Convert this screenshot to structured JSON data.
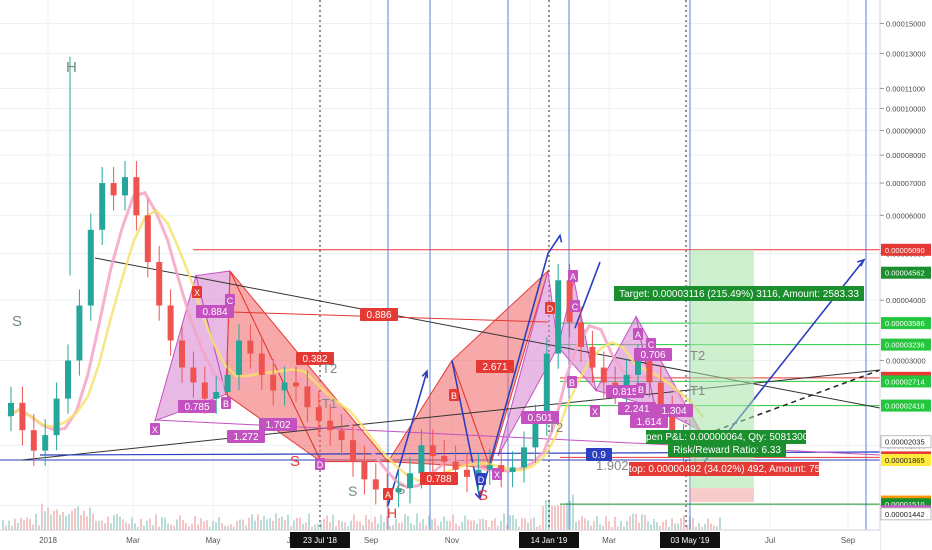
{
  "chart_data": {
    "type": "line",
    "title": "",
    "subtitle": "",
    "xlabel": "",
    "ylabel": "",
    "scale": "log",
    "ylim": [
      1.4e-05,
      0.00016
    ],
    "grid": true,
    "price_ticks": [
      "0.00015000",
      "0.00013000",
      "0.00011000",
      "0.00010000",
      "0.00009000",
      "0.00008000",
      "0.00007000",
      "0.00006000",
      "0.00005000",
      "0.00004000",
      "0.00003000",
      "0.00002000",
      "0.00001500"
    ],
    "price_tick_values": [
      0.00015,
      0.00013,
      0.00011,
      0.0001,
      9e-05,
      8e-05,
      7e-05,
      6e-05,
      5e-05,
      4e-05,
      3e-05,
      2e-05,
      1.5e-05
    ],
    "price_labels": [
      {
        "text": "0.00005090",
        "value": 5.09e-05,
        "color": "#e53935"
      },
      {
        "text": "0.00004562",
        "value": 4.562e-05,
        "color": "#1b8e2e"
      },
      {
        "text": "0.00003586",
        "value": 3.586e-05,
        "color": "#24c73c"
      },
      {
        "text": "0.00003236",
        "value": 3.236e-05,
        "color": "#24c73c"
      },
      {
        "text": "0.00002761",
        "value": 2.761e-05,
        "color": "#e53935"
      },
      {
        "text": "0.00002714",
        "value": 2.714e-05,
        "color": "#24c73c"
      },
      {
        "text": "0.00002418",
        "value": 2.418e-05,
        "color": "#24c73c"
      },
      {
        "text": "0.00002035",
        "value": 2.035e-05,
        "color": "#ffffff"
      },
      {
        "text": "0.00001888",
        "value": 1.888e-05,
        "color": "#e53935"
      },
      {
        "text": "0.00001865",
        "value": 1.865e-05,
        "color": "#ffeb3b"
      },
      {
        "text": "0.00001529",
        "value": 1.529e-05,
        "color": "#ff9800"
      },
      {
        "text": "0.00001510",
        "value": 1.51e-05,
        "color": "#1b8e2e"
      },
      {
        "text": "0.00001459",
        "value": 1.459e-05,
        "color": "#e050e0"
      },
      {
        "text": "0.00001446",
        "value": 1.446e-05,
        "color": "#333333"
      },
      {
        "text": "0.00001442",
        "value": 1.442e-05,
        "color": "#ffffff"
      }
    ],
    "time_ticks": [
      "2018",
      "Mar",
      "May",
      "Jul",
      "Sep",
      "Nov",
      "Jan",
      "Mar",
      "May",
      "Jul",
      "Sep"
    ],
    "time_highlights": [
      "23 Jul '18",
      "14 Jan '19",
      "03 May '19"
    ],
    "price_series": {
      "name": "",
      "points": [
        [
          0,
          2.3e-05
        ],
        [
          1,
          2.45e-05
        ],
        [
          2,
          2.15e-05
        ],
        [
          3,
          1.95e-05
        ],
        [
          4,
          2.1e-05
        ],
        [
          5,
          2.5e-05
        ],
        [
          6,
          3e-05
        ],
        [
          7,
          3.9e-05
        ],
        [
          8,
          5.6e-05
        ],
        [
          9,
          7e-05
        ],
        [
          10,
          6.6e-05
        ],
        [
          11,
          7.2e-05
        ],
        [
          12,
          6e-05
        ],
        [
          13,
          4.8e-05
        ],
        [
          14,
          3.9e-05
        ],
        [
          15,
          3.3e-05
        ],
        [
          16,
          2.9e-05
        ],
        [
          17,
          2.7e-05
        ],
        [
          18,
          2.5e-05
        ],
        [
          19,
          2.58e-05
        ],
        [
          20,
          2.8e-05
        ],
        [
          21,
          3.3e-05
        ],
        [
          22,
          3.1e-05
        ],
        [
          23,
          2.8e-05
        ],
        [
          24,
          2.6e-05
        ],
        [
          25,
          2.7e-05
        ],
        [
          26,
          2.65e-05
        ],
        [
          27,
          2.4e-05
        ],
        [
          28,
          2.25e-05
        ],
        [
          29,
          2.15e-05
        ],
        [
          30,
          2.05e-05
        ],
        [
          31,
          1.85e-05
        ],
        [
          32,
          1.7e-05
        ],
        [
          33,
          1.62e-05
        ],
        [
          34,
          1.6e-05
        ],
        [
          35,
          1.63e-05
        ],
        [
          36,
          1.75e-05
        ],
        [
          37,
          2e-05
        ],
        [
          38,
          1.9e-05
        ],
        [
          39,
          1.85e-05
        ],
        [
          40,
          1.78e-05
        ],
        [
          41,
          1.72e-05
        ],
        [
          42,
          1.78e-05
        ],
        [
          43,
          1.82e-05
        ],
        [
          44,
          1.76e-05
        ],
        [
          45,
          1.8e-05
        ],
        [
          46,
          1.98e-05
        ],
        [
          47,
          2.25e-05
        ],
        [
          48,
          3.1e-05
        ],
        [
          49,
          4.4e-05
        ],
        [
          50,
          3.6e-05
        ],
        [
          51,
          3.2e-05
        ],
        [
          52,
          2.9e-05
        ],
        [
          53,
          2.7e-05
        ],
        [
          54,
          2.62e-05
        ],
        [
          55,
          2.8e-05
        ],
        [
          56,
          3e-05
        ],
        [
          57,
          2.7e-05
        ],
        [
          58,
          2.35e-05
        ],
        [
          59,
          2.05e-05
        ],
        [
          60,
          1.95e-05
        ],
        [
          61,
          1.9e-05
        ]
      ]
    },
    "annotations": [
      {
        "text": "H",
        "kind": "structure"
      },
      {
        "text": "S",
        "kind": "structure"
      },
      {
        "text": "0.886",
        "kind": "ratio"
      },
      {
        "text": "0.382",
        "kind": "ratio"
      },
      {
        "text": "2.671",
        "kind": "ratio"
      },
      {
        "text": "0.785",
        "kind": "ratio"
      },
      {
        "text": "1.272",
        "kind": "ratio"
      },
      {
        "text": "1.702",
        "kind": "ratio"
      },
      {
        "text": "0.788",
        "kind": "ratio"
      },
      {
        "text": "0.501",
        "kind": "ratio"
      },
      {
        "text": "0.706",
        "kind": "ratio"
      },
      {
        "text": "0.815",
        "kind": "ratio"
      },
      {
        "text": "2.241",
        "kind": "ratio"
      },
      {
        "text": "1.614",
        "kind": "ratio"
      },
      {
        "text": "1.304",
        "kind": "ratio"
      },
      {
        "text": "0.9",
        "kind": "ratio"
      },
      {
        "text": "1.902",
        "kind": "ratio"
      },
      {
        "text": "0.884",
        "kind": "ratio"
      },
      {
        "text": "T1",
        "kind": "target"
      },
      {
        "text": "T2",
        "kind": "target"
      }
    ],
    "trade": {
      "target": "Target: 0.00003116 (215.49%) 3116, Amount: 2583.33",
      "open_pl": "Open P&L: 0.00000064, Qty: 50813008",
      "risk_reward": "Risk/Reward Ratio: 6.33",
      "stop": "Stop: 0.00000492 (34.02%) 492, Amount: 750"
    }
  }
}
